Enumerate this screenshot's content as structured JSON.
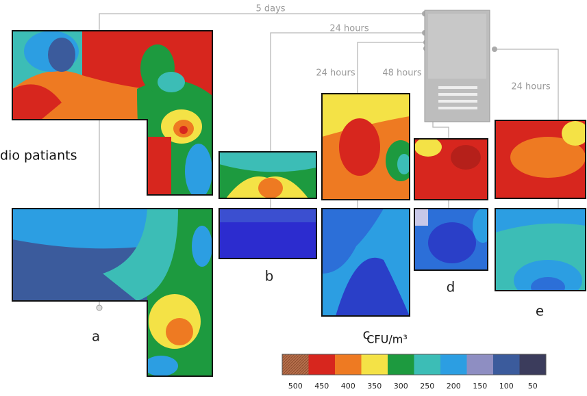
{
  "connectors": {
    "top": "5 days",
    "second": "24 hours",
    "c": "24 hours",
    "d": "48 hours",
    "e": "24 hours"
  },
  "side_label": "dio patiants",
  "panels": {
    "a": "a",
    "b": "b",
    "c": "c",
    "d": "d",
    "e": "e"
  },
  "legend": {
    "title": "CFU/m³",
    "levels": [
      500,
      450,
      400,
      350,
      300,
      250,
      200,
      150,
      100,
      50
    ],
    "colors": [
      "#b66f4c",
      "#d7261e",
      "#ee7a22",
      "#f4e246",
      "#1d9a3f",
      "#3cbdb6",
      "#2c9ee2",
      "#8e8ec2",
      "#3b5b9c",
      "#3b3c5c"
    ]
  }
}
